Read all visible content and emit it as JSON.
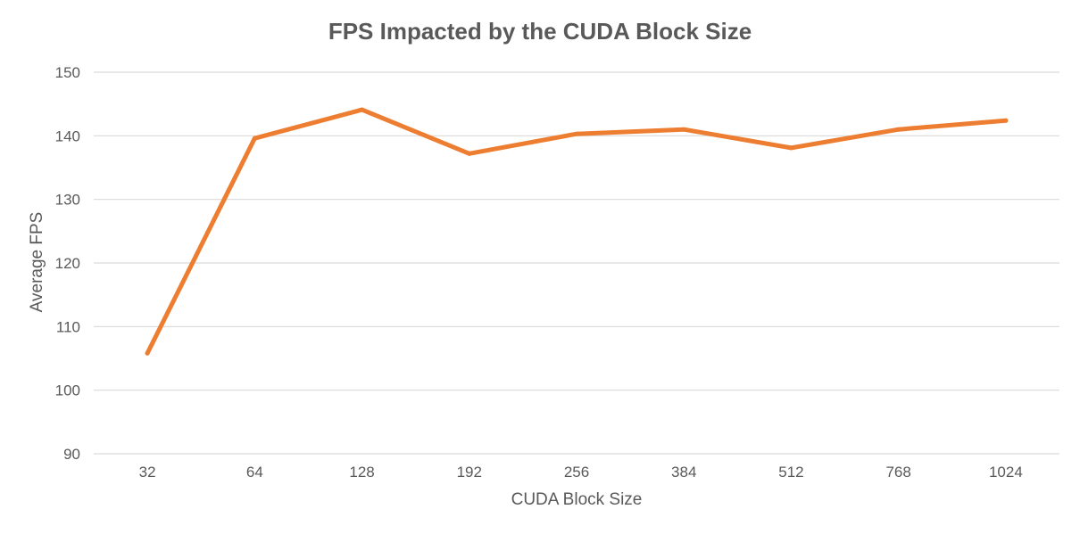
{
  "chart_data": {
    "type": "line",
    "title": "FPS Impacted by the CUDA Block Size",
    "xlabel": "CUDA Block Size",
    "ylabel": "Average FPS",
    "categories": [
      "32",
      "64",
      "128",
      "192",
      "256",
      "384",
      "512",
      "768",
      "1024"
    ],
    "series": [
      {
        "values": [
          105.8,
          139.6,
          144.1,
          137.2,
          140.3,
          141.0,
          138.1,
          141.0,
          142.4
        ]
      }
    ],
    "ylim": [
      90,
      150
    ],
    "yticks": [
      "90",
      "100",
      "110",
      "120",
      "130",
      "140",
      "150"
    ],
    "grid": true,
    "legend": "none",
    "colors": {
      "line": "#ED7D31",
      "grid": "#D9D9D9",
      "text": "#595959"
    }
  }
}
